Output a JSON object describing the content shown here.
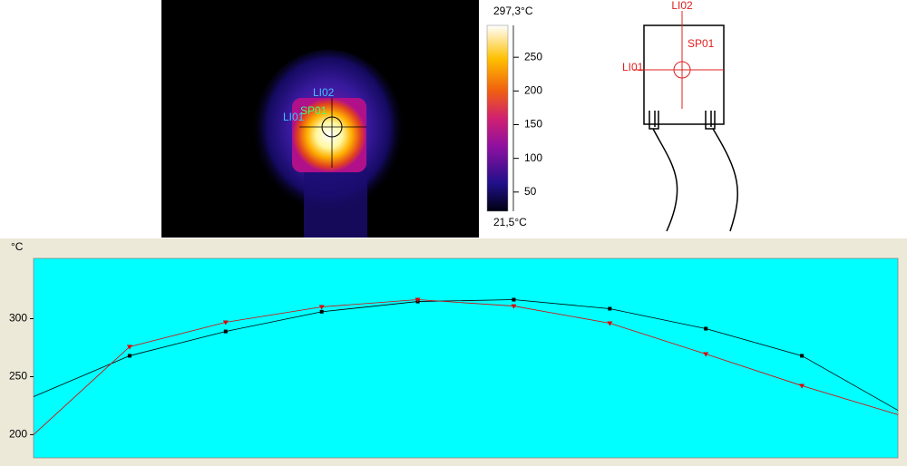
{
  "thermal_image": {
    "labels": [
      "LI02",
      "SP01",
      "LI01"
    ]
  },
  "colorbar": {
    "lim": [
      {
        "value": 21.5,
        "label": "21,5°C"
      },
      {
        "value": 297.3,
        "label": "297,3°C"
      }
    ],
    "ticks": [
      50,
      100,
      150,
      200,
      250
    ]
  },
  "schematic": {
    "labels": [
      "LI02",
      "SP01",
      "LI01"
    ]
  },
  "chart_data": {
    "type": "line",
    "ylabel": "°C",
    "categories": [
      null,
      null,
      null,
      null,
      null,
      null,
      null,
      null,
      null,
      null
    ],
    "series": [
      {
        "color": "#000000",
        "marker": "square",
        "values": [
          232.8,
          268,
          289,
          306,
          314.8,
          316.4,
          308.6,
          291.4,
          268,
          221
        ]
      },
      {
        "color": "#e00000",
        "marker": "triangle",
        "values": [
          200,
          275.8,
          296.9,
          310.2,
          316.4,
          310.9,
          296.1,
          269.5,
          242.2,
          217.2
        ]
      }
    ],
    "ylim": [
      180,
      352
    ],
    "yticks": [
      200,
      250,
      300
    ],
    "background": "#00ffff"
  }
}
